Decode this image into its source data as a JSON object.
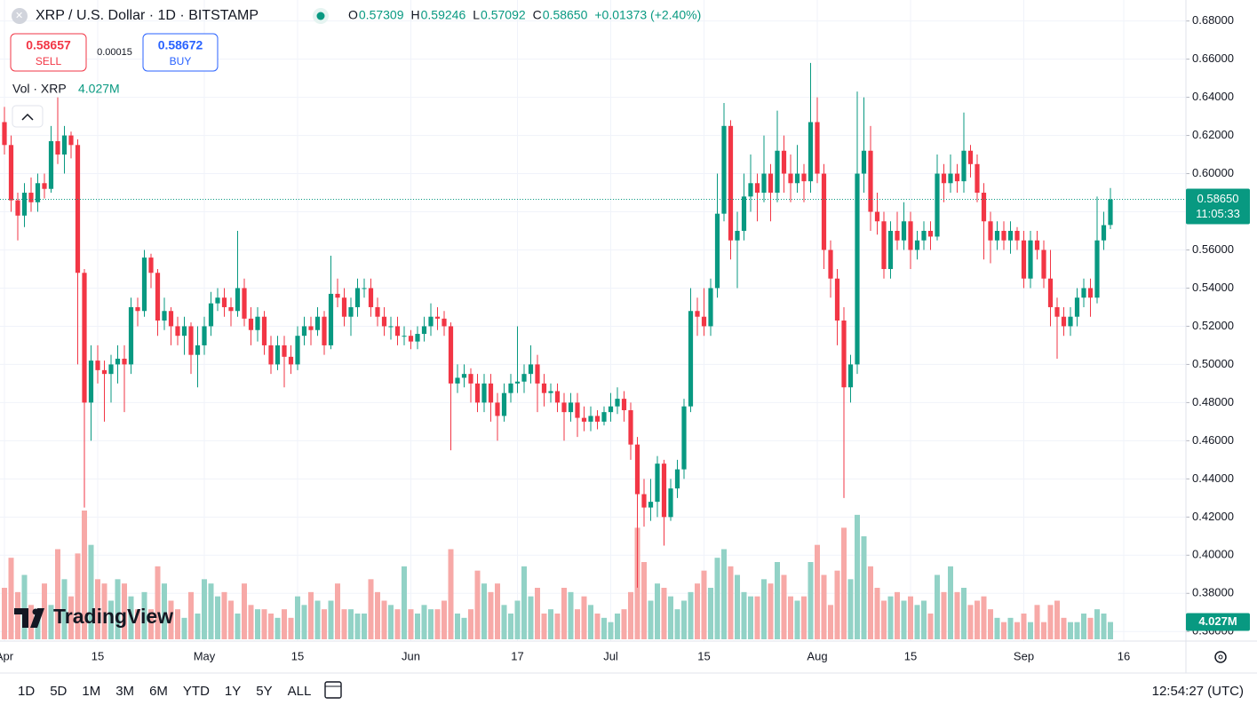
{
  "header": {
    "symbol": "XRP / U.S. Dollar · 1D · BITSTAMP",
    "ohlc": [
      {
        "key": "O",
        "value": "0.57309"
      },
      {
        "key": "H",
        "value": "0.59246"
      },
      {
        "key": "L",
        "value": "0.57092"
      },
      {
        "key": "C",
        "value": "0.58650"
      }
    ],
    "change": "+0.01373 (+2.40%)",
    "sell": {
      "price": "0.58657",
      "label": "SELL"
    },
    "spread": "0.00015",
    "buy": {
      "price": "0.58672",
      "label": "BUY"
    },
    "volume_legend": {
      "name": "Vol · XRP",
      "value": "4.027M"
    },
    "logo": "TradingView"
  },
  "chart_data": {
    "type": "candlestick",
    "up_color": "#089981",
    "down_color": "#f23645",
    "up_volume_color": "#92d2c6",
    "down_volume_color": "#f7a9a7",
    "x": [
      "Apr 1",
      "Apr 2",
      "Apr 3",
      "Apr 4",
      "Apr 5",
      "Apr 6",
      "Apr 7",
      "Apr 8",
      "Apr 9",
      "Apr 10",
      "Apr 11",
      "Apr 12",
      "Apr 13",
      "Apr 14",
      "Apr 15",
      "Apr 16",
      "Apr 17",
      "Apr 18",
      "Apr 19",
      "Apr 20",
      "Apr 21",
      "Apr 22",
      "Apr 23",
      "Apr 24",
      "Apr 25",
      "Apr 26",
      "Apr 27",
      "Apr 28",
      "Apr 29",
      "Apr 30",
      "May 1",
      "May 2",
      "May 3",
      "May 4",
      "May 5",
      "May 6",
      "May 7",
      "May 8",
      "May 9",
      "May 10",
      "May 11",
      "May 12",
      "May 13",
      "May 14",
      "May 15",
      "May 16",
      "May 17",
      "May 18",
      "May 19",
      "May 20",
      "May 21",
      "May 22",
      "May 23",
      "May 24",
      "May 25",
      "May 26",
      "May 27",
      "May 28",
      "May 29",
      "May 30",
      "May 31",
      "Jun 1",
      "Jun 2",
      "Jun 3",
      "Jun 4",
      "Jun 5",
      "Jun 6",
      "Jun 7",
      "Jun 8",
      "Jun 9",
      "Jun 10",
      "Jun 11",
      "Jun 12",
      "Jun 13",
      "Jun 14",
      "Jun 15",
      "Jun 16",
      "Jun 17",
      "Jun 18",
      "Jun 19",
      "Jun 20",
      "Jun 21",
      "Jun 22",
      "Jun 23",
      "Jun 24",
      "Jun 25",
      "Jun 26",
      "Jun 27",
      "Jun 28",
      "Jun 29",
      "Jun 30",
      "Jul 1",
      "Jul 2",
      "Jul 3",
      "Jul 4",
      "Jul 5",
      "Jul 6",
      "Jul 7",
      "Jul 8",
      "Jul 9",
      "Jul 10",
      "Jul 11",
      "Jul 12",
      "Jul 13",
      "Jul 14",
      "Jul 15",
      "Jul 16",
      "Jul 17",
      "Jul 18",
      "Jul 19",
      "Jul 20",
      "Jul 21",
      "Jul 22",
      "Jul 23",
      "Jul 24",
      "Jul 25",
      "Jul 26",
      "Jul 27",
      "Jul 28",
      "Jul 29",
      "Jul 30",
      "Jul 31",
      "Aug 1",
      "Aug 2",
      "Aug 3",
      "Aug 4",
      "Aug 5",
      "Aug 6",
      "Aug 7",
      "Aug 8",
      "Aug 9",
      "Aug 10",
      "Aug 11",
      "Aug 12",
      "Aug 13",
      "Aug 14",
      "Aug 15",
      "Aug 16",
      "Aug 17",
      "Aug 18",
      "Aug 19",
      "Aug 20",
      "Aug 21",
      "Aug 22",
      "Aug 23",
      "Aug 24",
      "Aug 25",
      "Aug 26",
      "Aug 27",
      "Aug 28",
      "Aug 29",
      "Aug 30",
      "Aug 31",
      "Sep 1",
      "Sep 2",
      "Sep 3",
      "Sep 4",
      "Sep 5",
      "Sep 6",
      "Sep 7",
      "Sep 8",
      "Sep 9",
      "Sep 10",
      "Sep 11",
      "Sep 12",
      "Sep 13",
      "Sep 14"
    ],
    "open": [
      0.627,
      0.615,
      0.586,
      0.578,
      0.59,
      0.585,
      0.595,
      0.592,
      0.617,
      0.61,
      0.62,
      0.615,
      0.548,
      0.48,
      0.502,
      0.497,
      0.495,
      0.5,
      0.503,
      0.5,
      0.53,
      0.528,
      0.556,
      0.548,
      0.523,
      0.528,
      0.52,
      0.515,
      0.52,
      0.505,
      0.51,
      0.52,
      0.532,
      0.535,
      0.53,
      0.528,
      0.54,
      0.524,
      0.518,
      0.525,
      0.51,
      0.5,
      0.51,
      0.504,
      0.5,
      0.515,
      0.52,
      0.518,
      0.525,
      0.51,
      0.537,
      0.535,
      0.525,
      0.53,
      0.54,
      0.54,
      0.53,
      0.525,
      0.52,
      0.52,
      0.515,
      0.515,
      0.512,
      0.516,
      0.52,
      0.525,
      0.524,
      0.52,
      0.49,
      0.493,
      0.495,
      0.49,
      0.48,
      0.49,
      0.48,
      0.473,
      0.485,
      0.49,
      0.491,
      0.495,
      0.5,
      0.49,
      0.485,
      0.486,
      0.48,
      0.475,
      0.48,
      0.472,
      0.47,
      0.473,
      0.47,
      0.475,
      0.478,
      0.482,
      0.476,
      0.458,
      0.432,
      0.425,
      0.428,
      0.448,
      0.42,
      0.435,
      0.445,
      0.478,
      0.528,
      0.525,
      0.52,
      0.54,
      0.579,
      0.625,
      0.565,
      0.57,
      0.588,
      0.595,
      0.59,
      0.6,
      0.59,
      0.612,
      0.6,
      0.595,
      0.6,
      0.596,
      0.627,
      0.6,
      0.56,
      0.545,
      0.523,
      0.488,
      0.5,
      0.6,
      0.612,
      0.58,
      0.575,
      0.55,
      0.57,
      0.565,
      0.575,
      0.56,
      0.565,
      0.57,
      0.567,
      0.6,
      0.595,
      0.6,
      0.596,
      0.612,
      0.605,
      0.59,
      0.575,
      0.565,
      0.57,
      0.565,
      0.57,
      0.565,
      0.545,
      0.565,
      0.56,
      0.545,
      0.53,
      0.525,
      0.52,
      0.525,
      0.535,
      0.54,
      0.535,
      0.565,
      0.57309
    ],
    "high": [
      0.635,
      0.62,
      0.59,
      0.595,
      0.598,
      0.6,
      0.6,
      0.625,
      0.64,
      0.625,
      0.622,
      0.618,
      0.55,
      0.51,
      0.51,
      0.502,
      0.505,
      0.51,
      0.51,
      0.535,
      0.535,
      0.56,
      0.558,
      0.55,
      0.535,
      0.53,
      0.525,
      0.525,
      0.522,
      0.52,
      0.525,
      0.538,
      0.54,
      0.54,
      0.535,
      0.57,
      0.545,
      0.53,
      0.53,
      0.528,
      0.515,
      0.515,
      0.515,
      0.51,
      0.52,
      0.525,
      0.525,
      0.53,
      0.528,
      0.557,
      0.545,
      0.54,
      0.535,
      0.545,
      0.545,
      0.545,
      0.535,
      0.53,
      0.525,
      0.525,
      0.52,
      0.518,
      0.52,
      0.525,
      0.532,
      0.53,
      0.528,
      0.522,
      0.5,
      0.5,
      0.498,
      0.495,
      0.495,
      0.495,
      0.485,
      0.49,
      0.495,
      0.52,
      0.5,
      0.51,
      0.505,
      0.495,
      0.49,
      0.49,
      0.485,
      0.485,
      0.485,
      0.478,
      0.478,
      0.476,
      0.478,
      0.485,
      0.488,
      0.486,
      0.48,
      0.462,
      0.44,
      0.44,
      0.452,
      0.45,
      0.44,
      0.45,
      0.482,
      0.54,
      0.535,
      0.54,
      0.545,
      0.6,
      0.637,
      0.628,
      0.58,
      0.6,
      0.61,
      0.6,
      0.62,
      0.605,
      0.633,
      0.62,
      0.61,
      0.615,
      0.605,
      0.658,
      0.64,
      0.605,
      0.565,
      0.55,
      0.53,
      0.505,
      0.643,
      0.64,
      0.625,
      0.59,
      0.58,
      0.575,
      0.58,
      0.585,
      0.58,
      0.57,
      0.575,
      0.575,
      0.61,
      0.605,
      0.61,
      0.605,
      0.632,
      0.615,
      0.61,
      0.595,
      0.58,
      0.575,
      0.575,
      0.575,
      0.572,
      0.57,
      0.57,
      0.57,
      0.565,
      0.56,
      0.535,
      0.53,
      0.53,
      0.54,
      0.545,
      0.545,
      0.588,
      0.58,
      0.59246
    ],
    "low": [
      0.61,
      0.58,
      0.565,
      0.572,
      0.58,
      0.58,
      0.587,
      0.59,
      0.605,
      0.6,
      0.608,
      0.5,
      0.425,
      0.46,
      0.49,
      0.47,
      0.48,
      0.49,
      0.475,
      0.495,
      0.52,
      0.525,
      0.54,
      0.515,
      0.518,
      0.51,
      0.51,
      0.505,
      0.495,
      0.488,
      0.505,
      0.515,
      0.528,
      0.525,
      0.52,
      0.525,
      0.52,
      0.51,
      0.512,
      0.505,
      0.495,
      0.497,
      0.488,
      0.495,
      0.497,
      0.51,
      0.51,
      0.515,
      0.505,
      0.508,
      0.53,
      0.52,
      0.515,
      0.525,
      0.535,
      0.525,
      0.52,
      0.515,
      0.513,
      0.51,
      0.51,
      0.508,
      0.508,
      0.512,
      0.515,
      0.518,
      0.515,
      0.455,
      0.485,
      0.488,
      0.48,
      0.475,
      0.475,
      0.47,
      0.46,
      0.47,
      0.48,
      0.485,
      0.485,
      0.49,
      0.475,
      0.478,
      0.48,
      0.475,
      0.46,
      0.47,
      0.462,
      0.465,
      0.465,
      0.466,
      0.468,
      0.47,
      0.474,
      0.47,
      0.45,
      0.383,
      0.415,
      0.418,
      0.42,
      0.405,
      0.418,
      0.43,
      0.44,
      0.475,
      0.515,
      0.515,
      0.515,
      0.535,
      0.575,
      0.555,
      0.54,
      0.565,
      0.58,
      0.575,
      0.585,
      0.575,
      0.585,
      0.59,
      0.585,
      0.59,
      0.585,
      0.59,
      0.595,
      0.55,
      0.535,
      0.51,
      0.43,
      0.48,
      0.495,
      0.59,
      0.57,
      0.568,
      0.545,
      0.545,
      0.56,
      0.56,
      0.55,
      0.555,
      0.56,
      0.56,
      0.565,
      0.585,
      0.59,
      0.59,
      0.59,
      0.598,
      0.585,
      0.555,
      0.553,
      0.56,
      0.56,
      0.558,
      0.56,
      0.54,
      0.54,
      0.555,
      0.54,
      0.52,
      0.503,
      0.515,
      0.515,
      0.52,
      0.53,
      0.525,
      0.532,
      0.56,
      0.57092
    ],
    "close": [
      0.615,
      0.586,
      0.578,
      0.59,
      0.585,
      0.595,
      0.592,
      0.617,
      0.61,
      0.62,
      0.615,
      0.548,
      0.48,
      0.502,
      0.497,
      0.495,
      0.5,
      0.503,
      0.5,
      0.53,
      0.528,
      0.556,
      0.548,
      0.523,
      0.528,
      0.52,
      0.515,
      0.52,
      0.505,
      0.51,
      0.52,
      0.532,
      0.535,
      0.53,
      0.528,
      0.54,
      0.524,
      0.518,
      0.525,
      0.51,
      0.5,
      0.51,
      0.504,
      0.5,
      0.515,
      0.52,
      0.518,
      0.525,
      0.51,
      0.537,
      0.535,
      0.525,
      0.53,
      0.54,
      0.54,
      0.53,
      0.525,
      0.52,
      0.52,
      0.515,
      0.515,
      0.512,
      0.516,
      0.52,
      0.525,
      0.524,
      0.52,
      0.49,
      0.493,
      0.495,
      0.49,
      0.48,
      0.49,
      0.48,
      0.473,
      0.485,
      0.49,
      0.491,
      0.495,
      0.5,
      0.49,
      0.485,
      0.486,
      0.48,
      0.475,
      0.48,
      0.472,
      0.47,
      0.473,
      0.47,
      0.475,
      0.478,
      0.482,
      0.476,
      0.458,
      0.432,
      0.425,
      0.428,
      0.448,
      0.42,
      0.435,
      0.445,
      0.478,
      0.528,
      0.525,
      0.52,
      0.54,
      0.579,
      0.625,
      0.565,
      0.57,
      0.588,
      0.595,
      0.59,
      0.6,
      0.59,
      0.612,
      0.6,
      0.595,
      0.6,
      0.596,
      0.627,
      0.6,
      0.56,
      0.545,
      0.523,
      0.488,
      0.5,
      0.6,
      0.612,
      0.58,
      0.575,
      0.55,
      0.57,
      0.565,
      0.575,
      0.56,
      0.565,
      0.57,
      0.567,
      0.6,
      0.595,
      0.6,
      0.596,
      0.612,
      0.605,
      0.59,
      0.575,
      0.565,
      0.57,
      0.565,
      0.57,
      0.565,
      0.545,
      0.565,
      0.56,
      0.545,
      0.53,
      0.525,
      0.52,
      0.525,
      0.535,
      0.54,
      0.535,
      0.565,
      0.573,
      0.5865
    ],
    "volume": [
      12,
      19,
      11,
      15,
      8,
      7,
      13,
      8,
      21,
      14,
      10,
      20,
      30,
      22,
      14,
      13,
      9,
      14,
      13,
      10,
      7,
      11,
      7,
      17,
      13,
      9,
      7,
      5,
      11,
      6,
      14,
      13,
      10,
      11,
      9,
      6,
      13,
      8,
      7,
      7,
      6,
      5,
      7,
      5,
      10,
      8,
      11,
      9,
      7,
      9,
      13,
      7,
      7,
      6,
      6,
      14,
      11,
      9,
      8,
      7,
      17,
      7,
      6,
      8,
      7,
      7,
      9,
      21,
      6,
      5,
      7,
      16,
      13,
      11,
      13,
      8,
      6,
      9,
      17,
      10,
      12,
      6,
      7,
      6,
      12,
      11,
      7,
      10,
      8,
      6,
      5,
      4,
      6,
      7,
      11,
      26,
      18,
      9,
      13,
      12,
      10,
      7,
      9,
      11,
      13,
      16,
      12,
      19,
      21,
      17,
      15,
      11,
      10,
      10,
      14,
      13,
      18,
      15,
      10,
      9,
      10,
      18,
      22,
      15,
      8,
      16,
      26,
      14,
      29,
      24,
      17,
      12,
      9,
      10,
      11,
      9,
      10,
      8,
      9,
      6,
      15,
      11,
      17,
      11,
      12,
      8,
      9,
      10,
      7,
      5,
      4,
      5,
      4,
      6,
      4,
      8,
      4,
      8,
      9,
      5,
      4,
      4,
      6,
      5,
      7,
      6,
      4.027
    ],
    "last_price": {
      "value": 0.5865,
      "label": "0.58650",
      "countdown": "11:05:33"
    },
    "last_volume_label": "4.027M",
    "ylim": [
      0.355,
      0.691
    ],
    "yticks": [
      {
        "value": 0.36,
        "label": "0.36000"
      },
      {
        "value": 0.38,
        "label": "0.38000"
      },
      {
        "value": 0.4,
        "label": "0.40000"
      },
      {
        "value": 0.42,
        "label": "0.42000"
      },
      {
        "value": 0.44,
        "label": "0.44000"
      },
      {
        "value": 0.46,
        "label": "0.46000"
      },
      {
        "value": 0.48,
        "label": "0.48000"
      },
      {
        "value": 0.5,
        "label": "0.50000"
      },
      {
        "value": 0.52,
        "label": "0.52000"
      },
      {
        "value": 0.54,
        "label": "0.54000"
      },
      {
        "value": 0.56,
        "label": "0.56000"
      },
      {
        "value": 0.58,
        "label": "0.58000"
      },
      {
        "value": 0.6,
        "label": "0.60000"
      },
      {
        "value": 0.62,
        "label": "0.62000"
      },
      {
        "value": 0.64,
        "label": "0.64000"
      },
      {
        "value": 0.66,
        "label": "0.66000"
      },
      {
        "value": 0.68,
        "label": "0.68000"
      }
    ],
    "xticks": [
      {
        "value": "Apr 1",
        "label": "Apr"
      },
      {
        "value": "Apr 15",
        "label": "15"
      },
      {
        "value": "May 1",
        "label": "May"
      },
      {
        "value": "May 15",
        "label": "15"
      },
      {
        "value": "Jun 1",
        "label": "Jun"
      },
      {
        "value": "Jun 17",
        "label": "17"
      },
      {
        "value": "Jul 1",
        "label": "Jul"
      },
      {
        "value": "Jul 15",
        "label": "15"
      },
      {
        "value": "Aug 1",
        "label": "Aug"
      },
      {
        "value": "Aug 15",
        "label": "15"
      },
      {
        "value": "Sep 1",
        "label": "Sep"
      },
      {
        "value": "Sep 16",
        "label": "16"
      }
    ],
    "grid": true
  },
  "toolbar": {
    "ranges": [
      "1D",
      "5D",
      "1M",
      "3M",
      "6M",
      "YTD",
      "1Y",
      "5Y",
      "ALL"
    ],
    "clock": "12:54:27 (UTC)"
  }
}
